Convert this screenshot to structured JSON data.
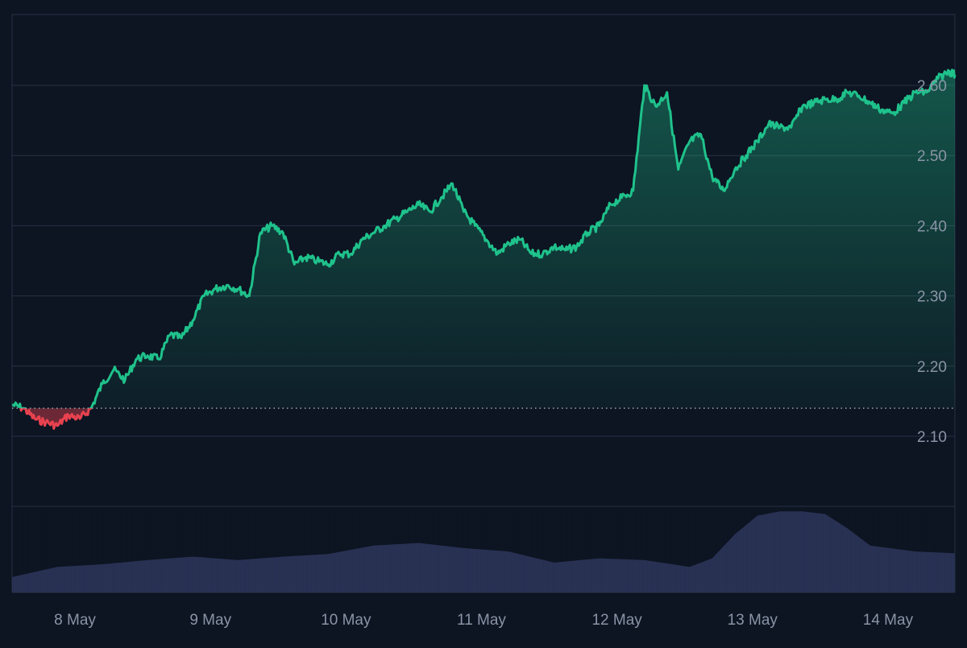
{
  "chart_data": {
    "type": "area",
    "baseline": 2.14,
    "y_ticks": [
      {
        "value": 2.1,
        "label": "2.10"
      },
      {
        "value": 2.2,
        "label": "2.20"
      },
      {
        "value": 2.3,
        "label": "2.30"
      },
      {
        "value": 2.4,
        "label": "2.40"
      },
      {
        "value": 2.5,
        "label": "2.50"
      },
      {
        "value": 2.6,
        "label": "2.60"
      }
    ],
    "x_ticks": [
      {
        "date": "2024-05-08",
        "label": "8 May"
      },
      {
        "date": "2024-05-09",
        "label": "9 May"
      },
      {
        "date": "2024-05-10",
        "label": "10 May"
      },
      {
        "date": "2024-05-11",
        "label": "11 May"
      },
      {
        "date": "2024-05-12",
        "label": "12 May"
      },
      {
        "date": "2024-05-13",
        "label": "13 May"
      },
      {
        "date": "2024-05-14",
        "label": "14 May"
      }
    ],
    "x_range": [
      "2024-05-07T14:00",
      "2024-05-14T13:00"
    ],
    "y_range": [
      2.04,
      2.65
    ],
    "grid": true,
    "legend": "none",
    "price_series": {
      "x": [
        "2024-05-07T14:00",
        "2024-05-07T16:00",
        "2024-05-07T18:00",
        "2024-05-07T20:00",
        "2024-05-07T22:00",
        "2024-05-08T00:00",
        "2024-05-08T02:00",
        "2024-05-08T04:00",
        "2024-05-08T06:00",
        "2024-05-08T08:00",
        "2024-05-08T10:00",
        "2024-05-08T12:00",
        "2024-05-08T14:00",
        "2024-05-08T16:00",
        "2024-05-08T18:00",
        "2024-05-08T20:00",
        "2024-05-08T22:00",
        "2024-05-09T00:00",
        "2024-05-09T02:00",
        "2024-05-09T04:00",
        "2024-05-09T06:00",
        "2024-05-09T08:00",
        "2024-05-09T10:00",
        "2024-05-09T12:00",
        "2024-05-09T14:00",
        "2024-05-09T16:00",
        "2024-05-09T18:00",
        "2024-05-09T20:00",
        "2024-05-09T22:00",
        "2024-05-10T00:00",
        "2024-05-10T02:00",
        "2024-05-10T04:00",
        "2024-05-10T06:00",
        "2024-05-10T08:00",
        "2024-05-10T10:00",
        "2024-05-10T12:00",
        "2024-05-10T14:00",
        "2024-05-10T16:00",
        "2024-05-10T18:00",
        "2024-05-10T20:00",
        "2024-05-10T22:00",
        "2024-05-11T00:00",
        "2024-05-11T02:00",
        "2024-05-11T04:00",
        "2024-05-11T06:00",
        "2024-05-11T08:00",
        "2024-05-11T10:00",
        "2024-05-11T12:00",
        "2024-05-11T14:00",
        "2024-05-11T16:00",
        "2024-05-11T18:00",
        "2024-05-11T20:00",
        "2024-05-11T22:00",
        "2024-05-12T00:00",
        "2024-05-12T02:00",
        "2024-05-12T04:00",
        "2024-05-12T06:00",
        "2024-05-12T08:00",
        "2024-05-12T10:00",
        "2024-05-12T12:00",
        "2024-05-12T14:00",
        "2024-05-12T16:00",
        "2024-05-12T18:00",
        "2024-05-12T20:00",
        "2024-05-12T22:00",
        "2024-05-13T00:00",
        "2024-05-13T02:00",
        "2024-05-13T04:00",
        "2024-05-13T06:00",
        "2024-05-13T08:00",
        "2024-05-13T10:00",
        "2024-05-13T12:00",
        "2024-05-13T14:00",
        "2024-05-13T16:00",
        "2024-05-13T18:00",
        "2024-05-13T20:00",
        "2024-05-13T22:00",
        "2024-05-14T00:00",
        "2024-05-14T02:00",
        "2024-05-14T04:00",
        "2024-05-14T06:00",
        "2024-05-14T08:00",
        "2024-05-14T10:00",
        "2024-05-14T12:00",
        "2024-05-14T13:00"
      ],
      "y": [
        2.145,
        2.14,
        2.125,
        2.12,
        2.115,
        2.13,
        2.125,
        2.14,
        2.175,
        2.195,
        2.18,
        2.21,
        2.215,
        2.21,
        2.245,
        2.24,
        2.265,
        2.3,
        2.31,
        2.315,
        2.31,
        2.3,
        2.39,
        2.4,
        2.39,
        2.345,
        2.355,
        2.35,
        2.345,
        2.36,
        2.36,
        2.38,
        2.39,
        2.4,
        2.41,
        2.42,
        2.43,
        2.42,
        2.44,
        2.46,
        2.42,
        2.4,
        2.38,
        2.36,
        2.375,
        2.38,
        2.36,
        2.36,
        2.37,
        2.365,
        2.37,
        2.39,
        2.4,
        2.43,
        2.44,
        2.45,
        2.6,
        2.57,
        2.59,
        2.48,
        2.52,
        2.53,
        2.47,
        2.45,
        2.48,
        2.5,
        2.52,
        2.545,
        2.54,
        2.54,
        2.57,
        2.575,
        2.58,
        2.58,
        2.59,
        2.585,
        2.575,
        2.565,
        2.56,
        2.575,
        2.59,
        2.59,
        2.61,
        2.62,
        2.615
      ]
    },
    "volume_series": {
      "x": [
        "2024-05-07T14:00",
        "2024-05-07T22:00",
        "2024-05-08T06:00",
        "2024-05-08T14:00",
        "2024-05-08T22:00",
        "2024-05-09T06:00",
        "2024-05-09T14:00",
        "2024-05-09T22:00",
        "2024-05-10T06:00",
        "2024-05-10T14:00",
        "2024-05-10T22:00",
        "2024-05-11T06:00",
        "2024-05-11T14:00",
        "2024-05-11T22:00",
        "2024-05-12T06:00",
        "2024-05-12T14:00",
        "2024-05-12T18:00",
        "2024-05-12T22:00",
        "2024-05-13T02:00",
        "2024-05-13T06:00",
        "2024-05-13T10:00",
        "2024-05-13T14:00",
        "2024-05-13T18:00",
        "2024-05-13T22:00",
        "2024-05-14T06:00",
        "2024-05-14T13:00"
      ],
      "y": [
        0.18,
        0.3,
        0.33,
        0.38,
        0.42,
        0.38,
        0.42,
        0.45,
        0.55,
        0.58,
        0.52,
        0.48,
        0.35,
        0.4,
        0.38,
        0.3,
        0.4,
        0.68,
        0.9,
        0.95,
        0.95,
        0.92,
        0.75,
        0.55,
        0.48,
        0.46
      ]
    }
  },
  "colors": {
    "background": "#0d1422",
    "grid": "#283244",
    "up_line": "#1fc28b",
    "down_line": "#e8424f",
    "baseline": "#9aa3b2",
    "volume": "#2a3356",
    "axis_text": "#8a94a6"
  }
}
